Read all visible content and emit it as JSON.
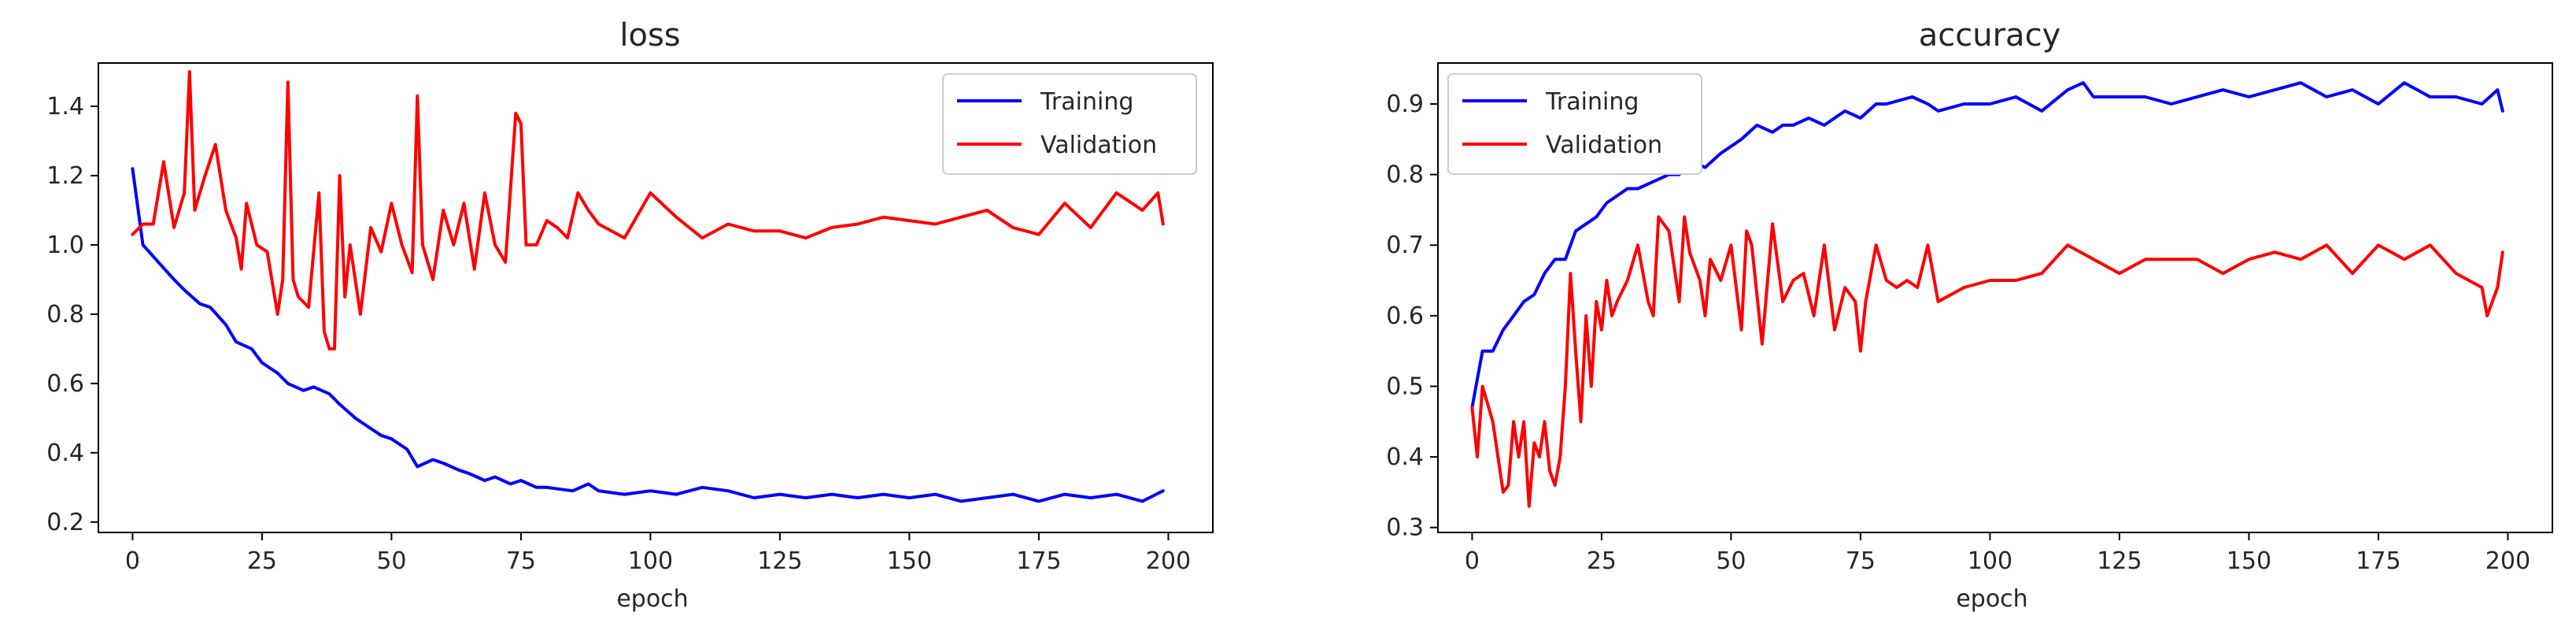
{
  "chart_data": [
    {
      "type": "line",
      "title": "loss",
      "xlabel": "epoch",
      "ylabel": "",
      "xlim": [
        -6.6,
        208.6
      ],
      "ylim": [
        0.17,
        1.525
      ],
      "xticks": [
        0,
        25,
        50,
        75,
        100,
        125,
        150,
        175,
        200
      ],
      "yticks": [
        0.2,
        0.4,
        0.6,
        0.8,
        1.0,
        1.2,
        1.4
      ],
      "ytick_labels": [
        "0.2",
        "0.4",
        "0.6",
        "0.8",
        "1.0",
        "1.2",
        "1.4"
      ],
      "legend_position": "top-right",
      "series": [
        {
          "name": "Training",
          "color": "#0000ff",
          "x": [
            0,
            2,
            5,
            8,
            10,
            13,
            15,
            18,
            20,
            23,
            25,
            28,
            30,
            33,
            35,
            38,
            40,
            43,
            45,
            48,
            50,
            53,
            55,
            58,
            60,
            63,
            65,
            68,
            70,
            73,
            75,
            78,
            80,
            85,
            88,
            90,
            95,
            100,
            105,
            110,
            115,
            120,
            125,
            130,
            135,
            140,
            145,
            150,
            155,
            160,
            165,
            170,
            175,
            180,
            185,
            190,
            195,
            199
          ],
          "values": [
            1.22,
            1.0,
            0.95,
            0.9,
            0.87,
            0.83,
            0.82,
            0.77,
            0.72,
            0.7,
            0.66,
            0.63,
            0.6,
            0.58,
            0.59,
            0.57,
            0.54,
            0.5,
            0.48,
            0.45,
            0.44,
            0.41,
            0.36,
            0.38,
            0.37,
            0.35,
            0.34,
            0.32,
            0.33,
            0.31,
            0.32,
            0.3,
            0.3,
            0.29,
            0.31,
            0.29,
            0.28,
            0.29,
            0.28,
            0.3,
            0.29,
            0.27,
            0.28,
            0.27,
            0.28,
            0.27,
            0.28,
            0.27,
            0.28,
            0.26,
            0.27,
            0.28,
            0.26,
            0.28,
            0.27,
            0.28,
            0.26,
            0.29
          ]
        },
        {
          "name": "Validation",
          "color": "#ff0000",
          "x": [
            0,
            2,
            4,
            6,
            8,
            10,
            11,
            12,
            14,
            16,
            18,
            20,
            21,
            22,
            24,
            26,
            28,
            29,
            30,
            31,
            32,
            34,
            36,
            37,
            38,
            39,
            40,
            41,
            42,
            44,
            46,
            48,
            50,
            52,
            54,
            55,
            56,
            58,
            60,
            62,
            64,
            66,
            68,
            70,
            72,
            74,
            75,
            76,
            78,
            80,
            82,
            84,
            86,
            88,
            90,
            95,
            100,
            105,
            110,
            115,
            120,
            125,
            130,
            135,
            140,
            145,
            150,
            155,
            160,
            165,
            170,
            175,
            180,
            185,
            190,
            195,
            198,
            199
          ],
          "values": [
            1.03,
            1.06,
            1.06,
            1.24,
            1.05,
            1.15,
            1.5,
            1.1,
            1.2,
            1.29,
            1.1,
            1.02,
            0.93,
            1.12,
            1.0,
            0.98,
            0.8,
            0.9,
            1.47,
            0.9,
            0.85,
            0.82,
            1.15,
            0.75,
            0.7,
            0.7,
            1.2,
            0.85,
            1.0,
            0.8,
            1.05,
            0.98,
            1.12,
            1.0,
            0.92,
            1.43,
            1.0,
            0.9,
            1.1,
            1.0,
            1.12,
            0.93,
            1.15,
            1.0,
            0.95,
            1.38,
            1.35,
            1.0,
            1.0,
            1.07,
            1.05,
            1.02,
            1.15,
            1.1,
            1.06,
            1.02,
            1.15,
            1.08,
            1.02,
            1.06,
            1.04,
            1.04,
            1.02,
            1.05,
            1.06,
            1.08,
            1.07,
            1.06,
            1.08,
            1.1,
            1.05,
            1.03,
            1.12,
            1.05,
            1.15,
            1.1,
            1.15,
            1.06
          ]
        }
      ]
    },
    {
      "type": "line",
      "title": "accuracy",
      "xlabel": "epoch",
      "ylabel": "",
      "xlim": [
        -6.6,
        208.6
      ],
      "ylim": [
        0.293,
        0.958
      ],
      "xticks": [
        0,
        25,
        50,
        75,
        100,
        125,
        150,
        175,
        200
      ],
      "yticks": [
        0.3,
        0.4,
        0.5,
        0.6,
        0.7,
        0.8,
        0.9
      ],
      "ytick_labels": [
        "0.3",
        "0.4",
        "0.5",
        "0.6",
        "0.7",
        "0.8",
        "0.9"
      ],
      "legend_position": "top-left",
      "series": [
        {
          "name": "Training",
          "color": "#0000ff",
          "x": [
            0,
            2,
            4,
            6,
            8,
            10,
            12,
            14,
            16,
            18,
            20,
            22,
            24,
            26,
            28,
            30,
            32,
            35,
            38,
            40,
            42,
            45,
            48,
            50,
            52,
            55,
            58,
            60,
            62,
            65,
            68,
            70,
            72,
            75,
            78,
            80,
            85,
            88,
            90,
            95,
            100,
            105,
            110,
            115,
            118,
            120,
            125,
            130,
            135,
            140,
            145,
            150,
            155,
            160,
            165,
            170,
            175,
            180,
            185,
            190,
            195,
            198,
            199
          ],
          "values": [
            0.47,
            0.55,
            0.55,
            0.58,
            0.6,
            0.62,
            0.63,
            0.66,
            0.68,
            0.68,
            0.72,
            0.73,
            0.74,
            0.76,
            0.77,
            0.78,
            0.78,
            0.79,
            0.8,
            0.8,
            0.82,
            0.81,
            0.83,
            0.84,
            0.85,
            0.87,
            0.86,
            0.87,
            0.87,
            0.88,
            0.87,
            0.88,
            0.89,
            0.88,
            0.9,
            0.9,
            0.91,
            0.9,
            0.89,
            0.9,
            0.9,
            0.91,
            0.89,
            0.92,
            0.93,
            0.91,
            0.91,
            0.91,
            0.9,
            0.91,
            0.92,
            0.91,
            0.92,
            0.93,
            0.91,
            0.92,
            0.9,
            0.93,
            0.91,
            0.91,
            0.9,
            0.92,
            0.89
          ]
        },
        {
          "name": "Validation",
          "color": "#ff0000",
          "x": [
            0,
            1,
            2,
            4,
            6,
            7,
            8,
            9,
            10,
            11,
            12,
            13,
            14,
            15,
            16,
            17,
            18,
            19,
            20,
            21,
            22,
            23,
            24,
            25,
            26,
            27,
            28,
            30,
            32,
            34,
            35,
            36,
            38,
            40,
            41,
            42,
            44,
            45,
            46,
            48,
            50,
            52,
            53,
            54,
            56,
            58,
            60,
            62,
            64,
            66,
            68,
            70,
            72,
            74,
            75,
            76,
            78,
            80,
            82,
            84,
            86,
            88,
            90,
            95,
            100,
            105,
            110,
            115,
            120,
            125,
            130,
            135,
            140,
            145,
            150,
            155,
            160,
            165,
            170,
            175,
            180,
            185,
            190,
            195,
            196,
            197,
            198,
            199
          ],
          "values": [
            0.47,
            0.4,
            0.5,
            0.45,
            0.35,
            0.36,
            0.45,
            0.4,
            0.45,
            0.33,
            0.42,
            0.4,
            0.45,
            0.38,
            0.36,
            0.4,
            0.5,
            0.66,
            0.55,
            0.45,
            0.6,
            0.5,
            0.62,
            0.58,
            0.65,
            0.6,
            0.62,
            0.65,
            0.7,
            0.62,
            0.6,
            0.74,
            0.72,
            0.62,
            0.74,
            0.69,
            0.65,
            0.6,
            0.68,
            0.65,
            0.7,
            0.58,
            0.72,
            0.7,
            0.56,
            0.73,
            0.62,
            0.65,
            0.66,
            0.6,
            0.7,
            0.58,
            0.64,
            0.62,
            0.55,
            0.62,
            0.7,
            0.65,
            0.64,
            0.65,
            0.64,
            0.7,
            0.62,
            0.64,
            0.65,
            0.65,
            0.66,
            0.7,
            0.68,
            0.66,
            0.68,
            0.68,
            0.68,
            0.66,
            0.68,
            0.69,
            0.68,
            0.7,
            0.66,
            0.7,
            0.68,
            0.7,
            0.66,
            0.64,
            0.6,
            0.62,
            0.64,
            0.69
          ]
        }
      ]
    }
  ]
}
